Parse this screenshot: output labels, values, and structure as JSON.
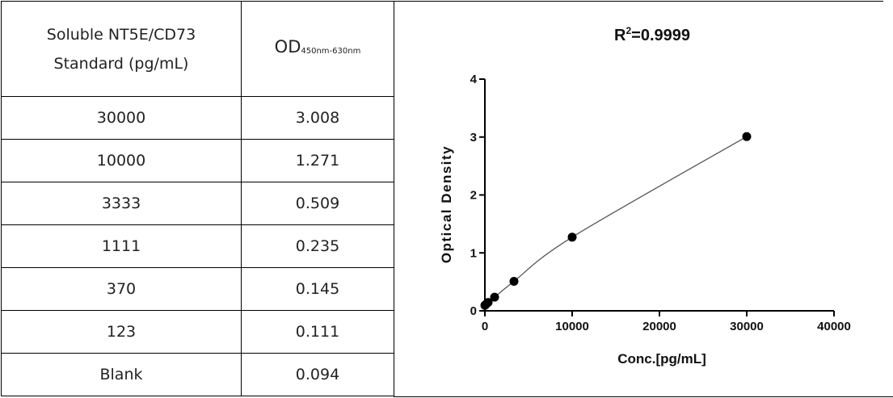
{
  "table": {
    "header": {
      "col1_line1": "Soluble NT5E/CD73",
      "col1_line2": "Standard (pg/mL)",
      "col2_main": "OD",
      "col2_sub": "450nm-630nm"
    },
    "rows": [
      {
        "standard": "30000",
        "od": "3.008"
      },
      {
        "standard": "10000",
        "od": "1.271"
      },
      {
        "standard": "3333",
        "od": "0.509"
      },
      {
        "standard": "1111",
        "od": "0.235"
      },
      {
        "standard": "370",
        "od": "0.145"
      },
      {
        "standard": "123",
        "od": "0.111"
      },
      {
        "standard": "Blank",
        "od": "0.094"
      }
    ]
  },
  "chart_data": {
    "type": "scatter",
    "title_main": "R",
    "title_sup": "2",
    "title_rest": "=0.9999",
    "xlabel": "Conc.[pg/mL]",
    "ylabel": "Optical Density",
    "xlim": [
      0,
      40000
    ],
    "ylim": [
      0,
      4
    ],
    "xticks": [
      0,
      10000,
      20000,
      30000,
      40000
    ],
    "yticks": [
      0,
      1,
      2,
      3,
      4
    ],
    "grid": false,
    "fit_line": true,
    "series": [
      {
        "x": [
          0,
          123,
          370,
          1111,
          3333,
          10000,
          30000
        ],
        "y": [
          0.094,
          0.111,
          0.145,
          0.235,
          0.509,
          1.271,
          3.008
        ]
      }
    ],
    "colors": {
      "marker": "#000000",
      "line": "#555555"
    }
  }
}
